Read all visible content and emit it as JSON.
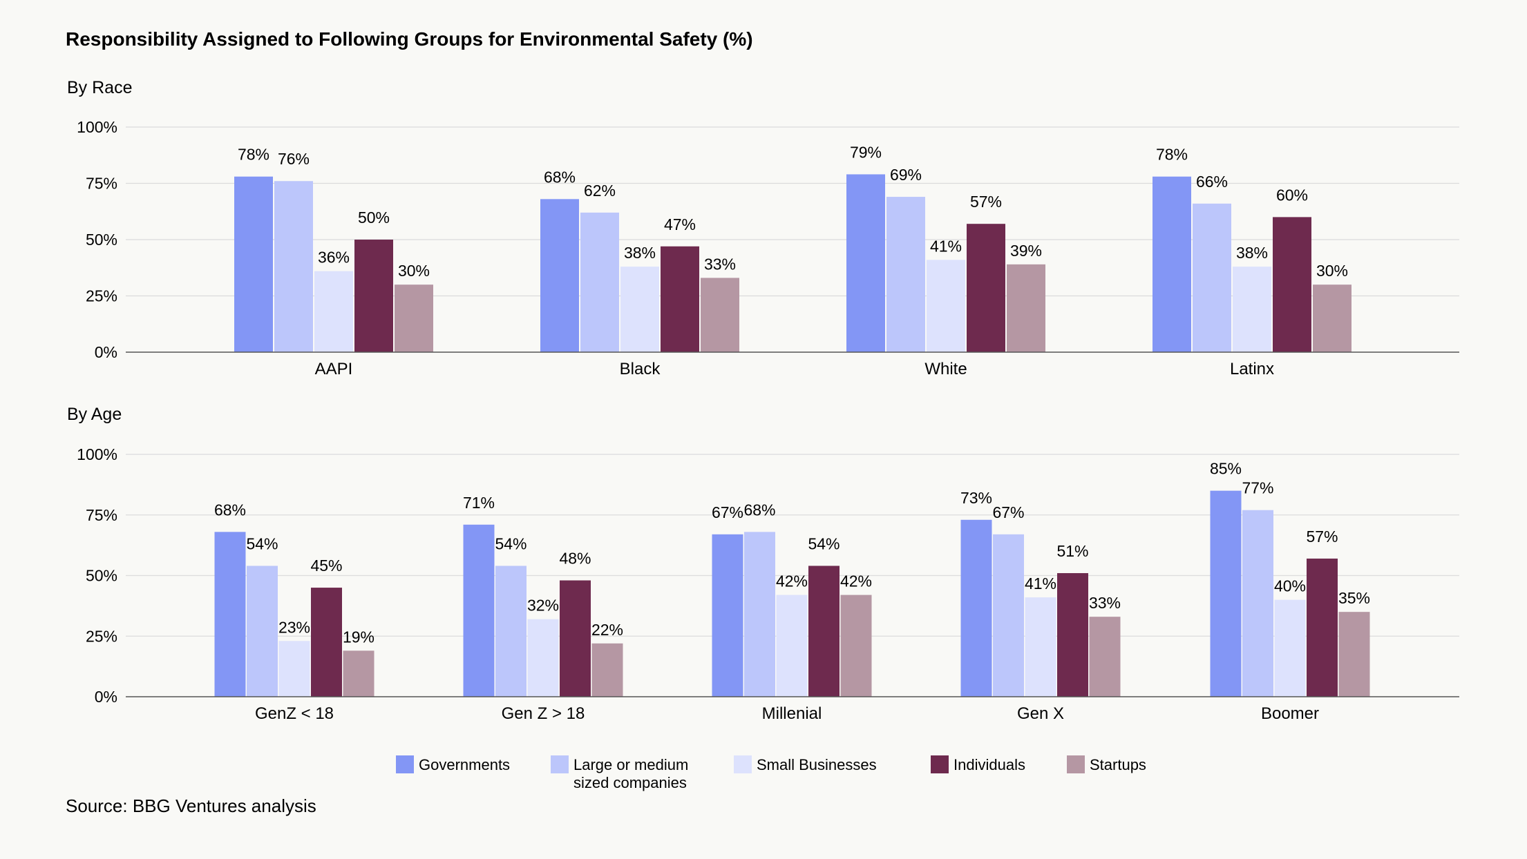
{
  "title": "Responsibility Assigned to Following Groups for Environmental Safety (%)",
  "source": "Source: BBG Ventures analysis",
  "colors": {
    "Governments": "#8396f5",
    "Large or medium sized companies": "#bcc6fb",
    "Small Businesses": "#dde2fd",
    "Individuals": "#6e2a4e",
    "Startups": "#b597a3"
  },
  "legend": [
    {
      "key": "Governments",
      "lines": [
        "Governments"
      ]
    },
    {
      "key": "Large or medium sized companies",
      "lines": [
        "Large or medium",
        "sized companies"
      ]
    },
    {
      "key": "Small Businesses",
      "lines": [
        "Small Businesses"
      ]
    },
    {
      "key": "Individuals",
      "lines": [
        "Individuals"
      ]
    },
    {
      "key": "Startups",
      "lines": [
        "Startups"
      ]
    }
  ],
  "chart_data": [
    {
      "type": "bar",
      "subtitle": "By Race",
      "categories": [
        "AAPI",
        "Black",
        "White",
        "Latinx"
      ],
      "series": [
        {
          "name": "Governments",
          "values": [
            78,
            68,
            79,
            78
          ]
        },
        {
          "name": "Large or medium sized companies",
          "values": [
            76,
            62,
            69,
            66
          ]
        },
        {
          "name": "Small Businesses",
          "values": [
            36,
            38,
            41,
            38
          ]
        },
        {
          "name": "Individuals",
          "values": [
            50,
            47,
            57,
            60
          ]
        },
        {
          "name": "Startups",
          "values": [
            30,
            33,
            39,
            30
          ]
        }
      ],
      "yticks": [
        "0%",
        "25%",
        "50%",
        "75%",
        "100%"
      ],
      "ylim": [
        0,
        100
      ],
      "grid": true
    },
    {
      "type": "bar",
      "subtitle": "By Age",
      "categories": [
        "GenZ < 18",
        "Gen Z > 18",
        "Millenial",
        "Gen X",
        "Boomer"
      ],
      "series": [
        {
          "name": "Governments",
          "values": [
            68,
            71,
            67,
            73,
            85
          ]
        },
        {
          "name": "Large or medium sized companies",
          "values": [
            54,
            54,
            68,
            67,
            77
          ]
        },
        {
          "name": "Small Businesses",
          "values": [
            23,
            32,
            42,
            41,
            40
          ]
        },
        {
          "name": "Individuals",
          "values": [
            45,
            48,
            54,
            51,
            57
          ]
        },
        {
          "name": "Startups",
          "values": [
            19,
            22,
            42,
            33,
            35
          ]
        }
      ],
      "yticks": [
        "0%",
        "25%",
        "50%",
        "75%",
        "100%"
      ],
      "ylim": [
        0,
        100
      ],
      "grid": true
    }
  ]
}
